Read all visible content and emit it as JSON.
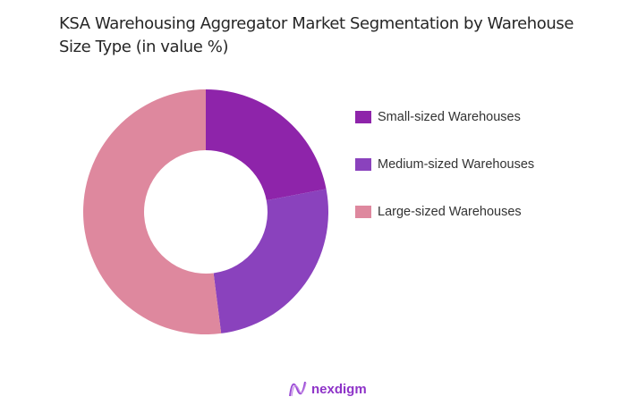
{
  "title": "KSA Warehousing Aggregator Market Segmentation by Warehouse Size Type (in value %)",
  "legend": [
    {
      "label": "Small-sized Warehouses",
      "color": "#8e24aa"
    },
    {
      "label": "Medium-sized Warehouses",
      "color": "#8a42bd"
    },
    {
      "label": "Large-sized Warehouses",
      "color": "#de889e"
    }
  ],
  "logo": {
    "text": "nexdigm"
  },
  "chart_data": {
    "type": "pie",
    "subtype": "donut",
    "title": "KSA Warehousing Aggregator Market Segmentation by Warehouse Size Type (in value %)",
    "categories": [
      "Small-sized Warehouses",
      "Medium-sized Warehouses",
      "Large-sized Warehouses"
    ],
    "values": [
      22,
      26,
      52
    ],
    "colors": [
      "#8e24aa",
      "#8a42bd",
      "#de889e"
    ],
    "legend_position": "right",
    "data_labels": false
  }
}
